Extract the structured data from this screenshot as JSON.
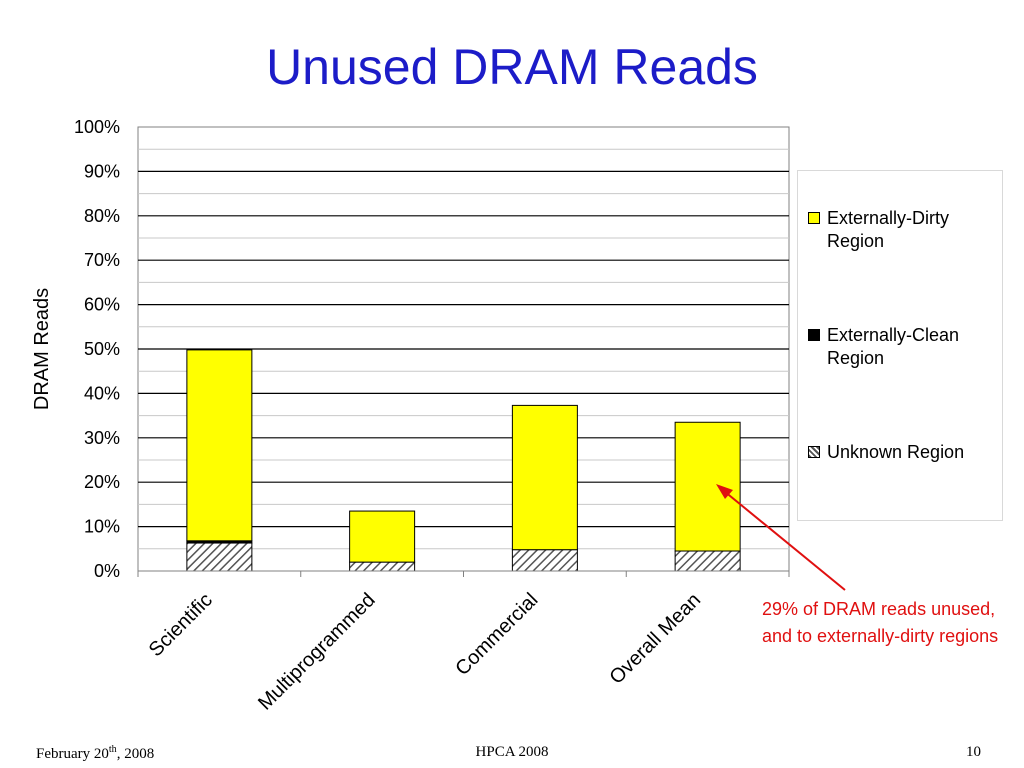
{
  "slide": {
    "title": "Unused DRAM Reads",
    "footer_date_prefix": "February 20",
    "footer_date_sup": "th",
    "footer_date_suffix": ", 2008",
    "footer_center": "HPCA 2008",
    "footer_page": "10"
  },
  "colors": {
    "title": "#1c1cc8",
    "dirty": "#ffff00",
    "clean": "#000000",
    "annotation": "#e01010"
  },
  "chart_data": {
    "type": "bar",
    "stacked": true,
    "ylabel": "DRAM Reads",
    "ylim": [
      0,
      100
    ],
    "yticks": [
      "0%",
      "10%",
      "20%",
      "30%",
      "40%",
      "50%",
      "60%",
      "70%",
      "80%",
      "90%",
      "100%"
    ],
    "grid": true,
    "legend_position": "right",
    "categories": [
      "Scientific",
      "Multiprogrammed",
      "Commercial",
      "Overall Mean"
    ],
    "series": [
      {
        "name": "Unknown Region",
        "pattern": "hatched",
        "values": [
          6.3,
          2.0,
          4.8,
          4.5
        ]
      },
      {
        "name": "Externally-Clean Region",
        "color": "#000000",
        "values": [
          0.5,
          0.0,
          0.0,
          0.0
        ]
      },
      {
        "name": "Externally-Dirty Region",
        "color": "#ffff00",
        "values": [
          43.0,
          11.5,
          32.5,
          29.0
        ]
      }
    ],
    "annotation": "29% of DRAM reads unused, and to externally-dirty regions"
  }
}
